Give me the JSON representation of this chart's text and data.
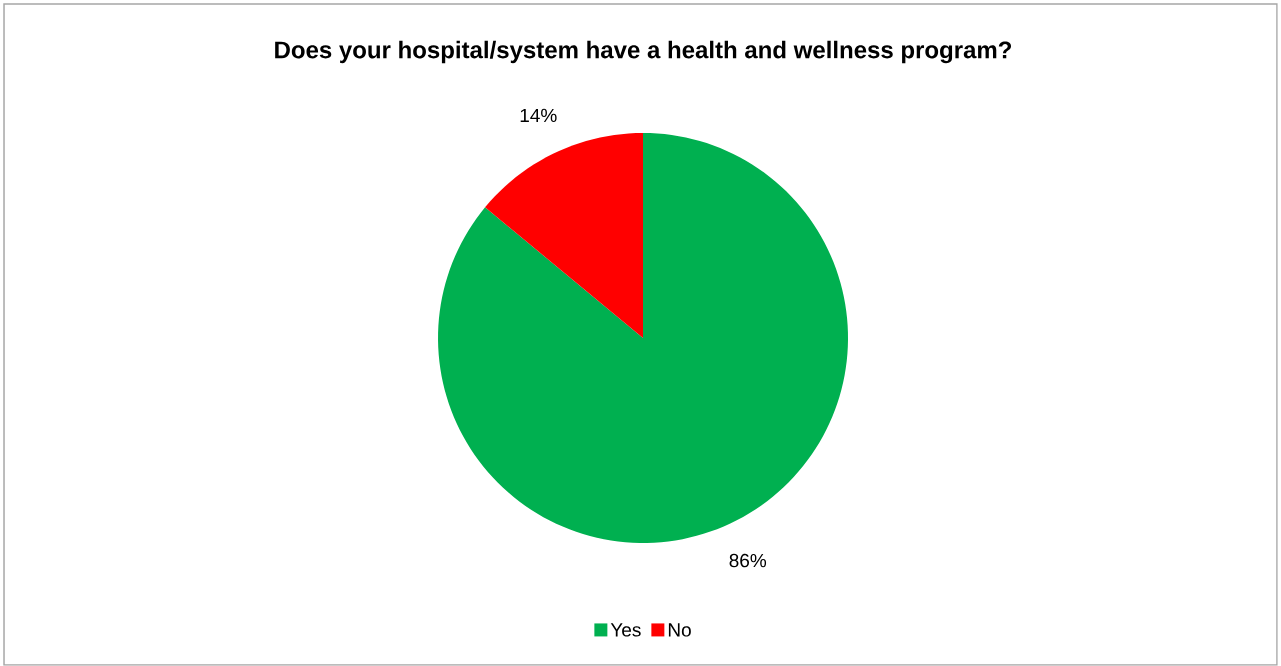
{
  "chart_data": {
    "type": "pie",
    "title": "Does your hospital/system have a health and wellness program?",
    "categories": [
      "Yes",
      "No"
    ],
    "values": [
      86,
      14
    ],
    "value_labels": [
      "86%",
      "14%"
    ],
    "colors": [
      "#00b050",
      "#ff0000"
    ],
    "legend": "bottom"
  }
}
